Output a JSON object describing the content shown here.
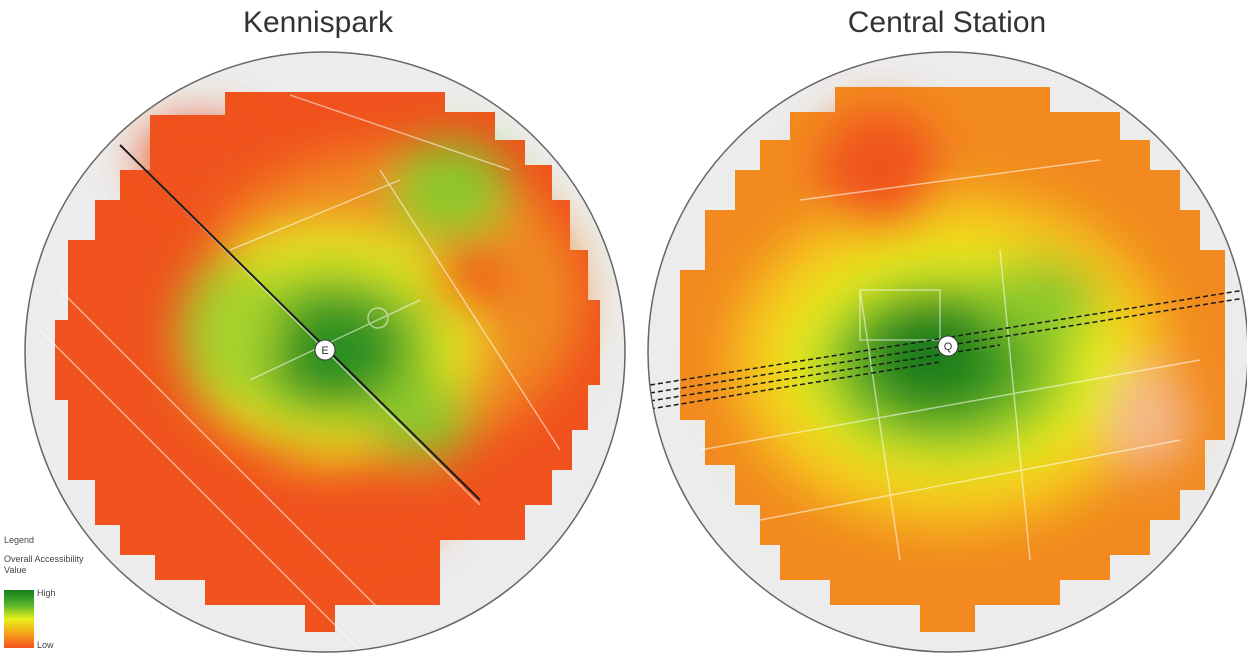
{
  "maps": [
    {
      "title": "Kennispark",
      "station_marker": "Ⓔ"
    },
    {
      "title": "Central Station",
      "station_marker": "Ⓠ"
    }
  ],
  "legend": {
    "heading": "Legend",
    "field": "Overall Accessibility",
    "field2": "Value",
    "high": "High",
    "low": "Low",
    "colors": [
      "#137d1d",
      "#53b32a",
      "#e6f01a",
      "#f7a21a",
      "#f2511d"
    ]
  }
}
